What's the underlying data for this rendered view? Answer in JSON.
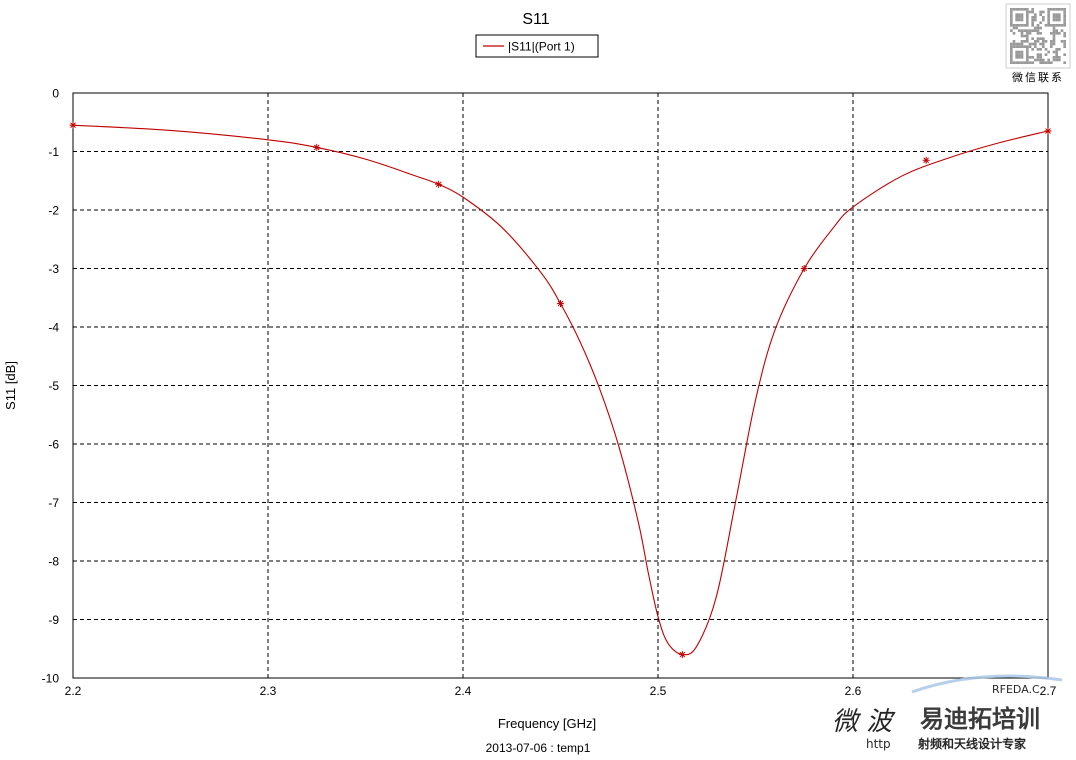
{
  "chart_data": {
    "type": "line",
    "title": "S11",
    "xlabel": "Frequency [GHz]",
    "ylabel": "S11 [dB]",
    "footer": "2013-07-06 : temp1",
    "xlim": [
      2.2,
      2.7
    ],
    "ylim": [
      -10,
      0
    ],
    "x_ticks": [
      2.2,
      2.3,
      2.4,
      2.5,
      2.6,
      2.7
    ],
    "x_tick_labels": [
      "2.2",
      "2.3",
      "2.4",
      "2.5",
      "2.6",
      "2.7"
    ],
    "y_ticks": [
      0,
      -1,
      -2,
      -3,
      -4,
      -5,
      -6,
      -7,
      -8,
      -9,
      -10
    ],
    "y_tick_labels": [
      "0",
      "-1",
      "-2",
      "-3",
      "-4",
      "-5",
      "-6",
      "-7",
      "-8",
      "-9",
      "-10"
    ],
    "grid": true,
    "legend_placement": "top-center",
    "series": [
      {
        "name": "|S11|(Port 1)",
        "color": "#c00000",
        "x": [
          2.2,
          2.25,
          2.3,
          2.325,
          2.35,
          2.375,
          2.3875,
          2.4,
          2.42,
          2.44,
          2.45,
          2.46,
          2.47,
          2.48,
          2.49,
          2.495,
          2.5,
          2.505,
          2.5125,
          2.52,
          2.53,
          2.54,
          2.55,
          2.56,
          2.575,
          2.59,
          2.6,
          2.625,
          2.65,
          2.675,
          2.7
        ],
        "y": [
          -0.55,
          -0.64,
          -0.8,
          -0.93,
          -1.13,
          -1.41,
          -1.56,
          -1.78,
          -2.3,
          -3.07,
          -3.6,
          -4.25,
          -5.05,
          -6.05,
          -7.35,
          -8.2,
          -8.95,
          -9.4,
          -9.6,
          -9.45,
          -8.6,
          -6.95,
          -5.25,
          -4.05,
          -3.0,
          -2.3,
          -1.95,
          -1.42,
          -1.1,
          -0.85,
          -0.65
        ],
        "markers_x": [
          2.2,
          2.325,
          2.3875,
          2.45,
          2.5125,
          2.575,
          2.6375,
          2.7
        ],
        "markers_y": [
          -0.55,
          -0.93,
          -1.56,
          -3.6,
          -9.6,
          -3.0,
          -1.15,
          -0.65
        ]
      }
    ]
  },
  "watermark": {
    "qr_caption": "微信联系",
    "web_prefix": "RFEDA.C",
    "cn_blue": "微 波",
    "cn_red": "易迪拓培训",
    "url_prefix": "http",
    "slogan": "射频和天线设计专家"
  }
}
